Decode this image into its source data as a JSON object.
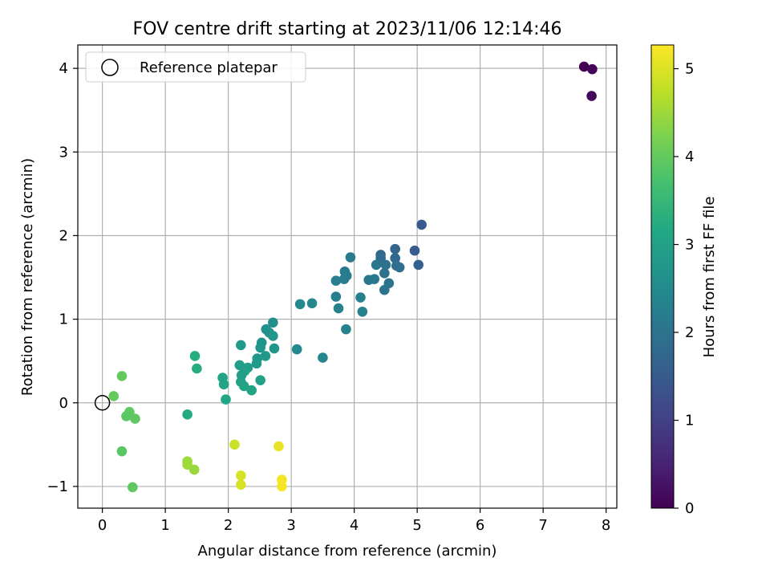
{
  "chart_data": {
    "type": "scatter",
    "title": "FOV centre drift starting at 2023/11/06 12:14:46",
    "xlabel": "Angular distance from reference (arcmin)",
    "ylabel": "Rotation from reference (arcmin)",
    "xlim": [
      -0.39,
      8.17
    ],
    "ylim": [
      -1.26,
      4.28
    ],
    "xticks": [
      "0",
      "1",
      "2",
      "3",
      "4",
      "5",
      "6",
      "7",
      "8"
    ],
    "yticks": [
      "−1",
      "0",
      "1",
      "2",
      "3",
      "4"
    ],
    "grid": true,
    "legend": {
      "placement": "top-left",
      "entries": [
        "Reference platepar"
      ]
    },
    "reference_point": {
      "x": 0,
      "y": 0
    },
    "colorbar": {
      "label": "Hours from first FF file",
      "colormap": "viridis",
      "range": [
        0,
        5.27
      ],
      "ticks": [
        "0",
        "1",
        "2",
        "3",
        "4",
        "5"
      ]
    },
    "points": [
      {
        "x": 7.65,
        "y": 4.02,
        "c": 0.0
      },
      {
        "x": 7.78,
        "y": 3.99,
        "c": 0.05
      },
      {
        "x": 7.77,
        "y": 3.67,
        "c": 0.1
      },
      {
        "x": 5.07,
        "y": 2.13,
        "c": 1.5
      },
      {
        "x": 4.96,
        "y": 1.82,
        "c": 1.55
      },
      {
        "x": 5.02,
        "y": 1.65,
        "c": 1.6
      },
      {
        "x": 4.65,
        "y": 1.84,
        "c": 1.7
      },
      {
        "x": 4.42,
        "y": 1.77,
        "c": 1.75
      },
      {
        "x": 4.65,
        "y": 1.73,
        "c": 1.8
      },
      {
        "x": 4.42,
        "y": 1.73,
        "c": 1.85
      },
      {
        "x": 4.72,
        "y": 1.62,
        "c": 1.9
      },
      {
        "x": 4.67,
        "y": 1.64,
        "c": 1.9
      },
      {
        "x": 4.5,
        "y": 1.65,
        "c": 1.95
      },
      {
        "x": 4.48,
        "y": 1.55,
        "c": 1.95
      },
      {
        "x": 4.55,
        "y": 1.43,
        "c": 2.0
      },
      {
        "x": 4.48,
        "y": 1.35,
        "c": 2.0
      },
      {
        "x": 4.35,
        "y": 1.65,
        "c": 2.05
      },
      {
        "x": 4.32,
        "y": 1.48,
        "c": 2.1
      },
      {
        "x": 4.23,
        "y": 1.47,
        "c": 2.1
      },
      {
        "x": 3.94,
        "y": 1.74,
        "c": 2.15
      },
      {
        "x": 3.85,
        "y": 1.57,
        "c": 2.15
      },
      {
        "x": 3.88,
        "y": 1.52,
        "c": 2.2
      },
      {
        "x": 3.84,
        "y": 1.48,
        "c": 2.2
      },
      {
        "x": 3.71,
        "y": 1.46,
        "c": 2.25
      },
      {
        "x": 3.71,
        "y": 1.27,
        "c": 2.25
      },
      {
        "x": 4.1,
        "y": 1.26,
        "c": 2.3
      },
      {
        "x": 3.75,
        "y": 1.13,
        "c": 2.3
      },
      {
        "x": 4.13,
        "y": 1.09,
        "c": 2.35
      },
      {
        "x": 3.87,
        "y": 0.88,
        "c": 2.35
      },
      {
        "x": 3.5,
        "y": 0.54,
        "c": 2.4
      },
      {
        "x": 3.33,
        "y": 1.19,
        "c": 2.45
      },
      {
        "x": 3.14,
        "y": 1.18,
        "c": 2.45
      },
      {
        "x": 3.09,
        "y": 0.64,
        "c": 2.5
      },
      {
        "x": 2.71,
        "y": 0.96,
        "c": 2.6
      },
      {
        "x": 2.6,
        "y": 0.88,
        "c": 2.65
      },
      {
        "x": 2.65,
        "y": 0.84,
        "c": 2.65
      },
      {
        "x": 2.71,
        "y": 0.8,
        "c": 2.7
      },
      {
        "x": 2.53,
        "y": 0.72,
        "c": 2.7
      },
      {
        "x": 2.51,
        "y": 0.66,
        "c": 2.75
      },
      {
        "x": 2.73,
        "y": 0.65,
        "c": 2.75
      },
      {
        "x": 2.59,
        "y": 0.56,
        "c": 2.8
      },
      {
        "x": 2.46,
        "y": 0.53,
        "c": 2.8
      },
      {
        "x": 2.45,
        "y": 0.47,
        "c": 2.85
      },
      {
        "x": 2.2,
        "y": 0.69,
        "c": 2.85
      },
      {
        "x": 2.18,
        "y": 0.45,
        "c": 2.9
      },
      {
        "x": 2.31,
        "y": 0.42,
        "c": 2.9
      },
      {
        "x": 2.26,
        "y": 0.38,
        "c": 2.95
      },
      {
        "x": 2.21,
        "y": 0.33,
        "c": 2.95
      },
      {
        "x": 2.51,
        "y": 0.27,
        "c": 3.0
      },
      {
        "x": 2.2,
        "y": 0.25,
        "c": 3.0
      },
      {
        "x": 2.25,
        "y": 0.2,
        "c": 3.05
      },
      {
        "x": 2.37,
        "y": 0.15,
        "c": 3.05
      },
      {
        "x": 1.91,
        "y": 0.3,
        "c": 3.1
      },
      {
        "x": 1.93,
        "y": 0.22,
        "c": 3.1
      },
      {
        "x": 1.96,
        "y": 0.04,
        "c": 3.15
      },
      {
        "x": 1.47,
        "y": 0.56,
        "c": 3.25
      },
      {
        "x": 1.5,
        "y": 0.41,
        "c": 3.25
      },
      {
        "x": 1.35,
        "y": -0.14,
        "c": 3.2
      },
      {
        "x": 0.31,
        "y": 0.32,
        "c": 4.0
      },
      {
        "x": 0.18,
        "y": 0.08,
        "c": 4.0
      },
      {
        "x": 0.43,
        "y": -0.11,
        "c": 3.95
      },
      {
        "x": 0.38,
        "y": -0.16,
        "c": 3.9
      },
      {
        "x": 0.52,
        "y": -0.19,
        "c": 3.95
      },
      {
        "x": 0.31,
        "y": -0.58,
        "c": 3.9
      },
      {
        "x": 0.48,
        "y": -1.01,
        "c": 3.95
      },
      {
        "x": 1.35,
        "y": -0.7,
        "c": 4.5
      },
      {
        "x": 1.35,
        "y": -0.74,
        "c": 4.5
      },
      {
        "x": 1.46,
        "y": -0.8,
        "c": 4.45
      },
      {
        "x": 2.1,
        "y": -0.5,
        "c": 4.85
      },
      {
        "x": 2.2,
        "y": -0.87,
        "c": 4.95
      },
      {
        "x": 2.2,
        "y": -0.98,
        "c": 4.95
      },
      {
        "x": 2.8,
        "y": -0.52,
        "c": 5.1
      },
      {
        "x": 2.85,
        "y": -0.92,
        "c": 5.2
      },
      {
        "x": 2.85,
        "y": -1.0,
        "c": 5.2
      }
    ]
  }
}
